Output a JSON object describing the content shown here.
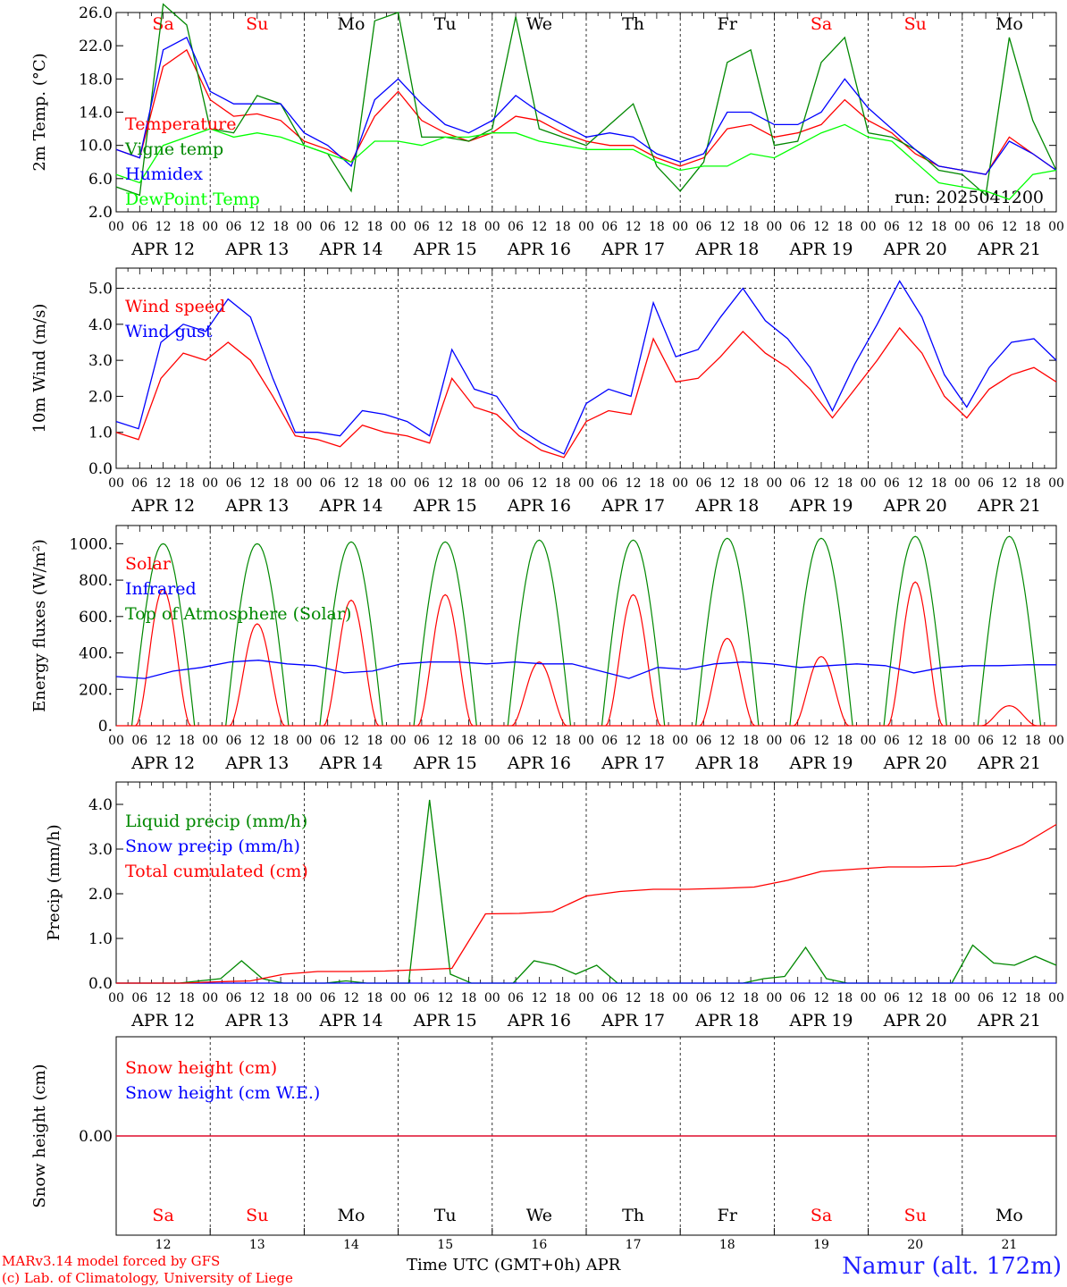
{
  "chart_data": [
    {
      "type": "line",
      "ylabel": "2m Temp. (°C)",
      "ylim": [
        2.0,
        26.0
      ],
      "yticks": [
        "26.0",
        "22.0",
        "18.0",
        "14.0",
        "10.0",
        "6.0",
        "2.0"
      ],
      "grid": "vertical dashed at day boundaries",
      "run_label": "run: 2025041200",
      "day_names": [
        "Sa",
        "Su",
        "Mo",
        "Tu",
        "We",
        "Th",
        "Fr",
        "Sa",
        "Su",
        "Mo"
      ],
      "day_colors": [
        "#ff0000",
        "#ff0000",
        "#000000",
        "#000000",
        "#000000",
        "#000000",
        "#000000",
        "#ff0000",
        "#ff0000",
        "#000000"
      ],
      "x_hours": [
        0,
        6,
        12,
        18,
        24,
        30,
        36,
        42,
        48,
        54,
        60,
        66,
        72,
        78,
        84,
        90,
        96,
        102,
        108,
        114,
        120,
        126,
        132,
        138,
        144,
        150,
        156,
        162,
        168,
        174,
        180,
        186,
        192,
        198,
        204,
        210,
        216,
        222,
        228,
        234,
        240
      ],
      "series": [
        {
          "name": "Temperature",
          "color": "#ff0000",
          "values": [
            9.5,
            8.5,
            19.5,
            21.5,
            15.5,
            13.5,
            13.8,
            13.0,
            10.5,
            9.5,
            8.0,
            13.5,
            16.5,
            13.0,
            11.5,
            10.5,
            11.5,
            13.5,
            13.0,
            11.5,
            10.5,
            10.0,
            10.0,
            8.5,
            7.5,
            8.5,
            12.0,
            12.5,
            11.0,
            11.5,
            12.5,
            15.5,
            13.0,
            11.5,
            9.0,
            7.5,
            7.0,
            6.5,
            11.0,
            9.0,
            7.0
          ]
        },
        {
          "name": "Vigne temp",
          "color": "#008800",
          "values": [
            5.0,
            4.0,
            27.0,
            24.5,
            12.0,
            11.5,
            16.0,
            15.0,
            10.0,
            9.0,
            4.5,
            25.0,
            26.0,
            11.0,
            11.0,
            10.5,
            12.0,
            25.5,
            12.0,
            11.0,
            10.0,
            12.5,
            15.0,
            7.5,
            4.5,
            8.0,
            20.0,
            21.5,
            10.0,
            10.5,
            20.0,
            23.0,
            11.5,
            11.0,
            9.5,
            7.0,
            6.5,
            4.0,
            23.0,
            13.0,
            7.0
          ]
        },
        {
          "name": "Humidex",
          "color": "#0000ff",
          "values": [
            9.5,
            8.5,
            21.5,
            23.0,
            16.5,
            15.0,
            15.0,
            15.0,
            11.5,
            10.0,
            7.5,
            15.5,
            18.0,
            15.0,
            12.5,
            11.5,
            13.0,
            16.0,
            14.0,
            12.5,
            11.0,
            11.5,
            11.0,
            9.0,
            8.0,
            9.0,
            14.0,
            14.0,
            12.5,
            12.5,
            14.0,
            18.0,
            14.5,
            12.0,
            9.5,
            7.5,
            7.0,
            6.5,
            10.5,
            9.0,
            7.0
          ]
        },
        {
          "name": "DewPoint Temp",
          "color": "#00ff00",
          "values": [
            6.5,
            5.5,
            10.0,
            11.0,
            12.0,
            11.0,
            11.5,
            11.0,
            10.0,
            9.0,
            8.0,
            10.5,
            10.5,
            10.0,
            11.0,
            11.0,
            11.5,
            11.5,
            10.5,
            10.0,
            9.5,
            9.5,
            9.5,
            8.0,
            7.0,
            7.5,
            7.5,
            9.0,
            8.5,
            10.0,
            11.5,
            12.5,
            11.0,
            10.5,
            8.0,
            5.5,
            5.0,
            4.5,
            3.5,
            6.5,
            7.0
          ]
        }
      ]
    },
    {
      "type": "line",
      "ylabel": "10m Wind (m/s)",
      "ylim": [
        0.0,
        5.0
      ],
      "yticks": [
        "5.0",
        "4.0",
        "3.0",
        "2.0",
        "1.0",
        "0.0"
      ],
      "series": [
        {
          "name": "Wind speed",
          "color": "#ff0000",
          "values": [
            1.0,
            0.8,
            2.5,
            3.2,
            3.0,
            3.5,
            3.0,
            2.0,
            0.9,
            0.8,
            0.6,
            1.2,
            1.0,
            0.9,
            0.7,
            2.5,
            1.7,
            1.5,
            0.9,
            0.5,
            0.3,
            1.3,
            1.6,
            1.5,
            3.6,
            2.4,
            2.5,
            3.1,
            3.8,
            3.2,
            2.8,
            2.2,
            1.4,
            2.2,
            3.0,
            3.9,
            3.2,
            2.0,
            1.4,
            2.2,
            2.6,
            2.8,
            2.4
          ]
        },
        {
          "name": "Wind gust",
          "color": "#0000ff",
          "values": [
            1.3,
            1.1,
            3.5,
            4.0,
            3.8,
            4.7,
            4.2,
            2.5,
            1.0,
            1.0,
            0.9,
            1.6,
            1.5,
            1.3,
            0.9,
            3.3,
            2.2,
            2.0,
            1.1,
            0.7,
            0.4,
            1.8,
            2.2,
            2.0,
            4.6,
            3.1,
            3.3,
            4.2,
            5.0,
            4.1,
            3.6,
            2.8,
            1.6,
            2.9,
            4.0,
            5.2,
            4.2,
            2.6,
            1.7,
            2.8,
            3.5,
            3.6,
            3.0
          ]
        }
      ]
    },
    {
      "type": "line",
      "ylabel": "Energy fluxes (W/m²)",
      "ylim": [
        0,
        1000
      ],
      "yticks": [
        "1000.",
        "800.",
        "600.",
        "400.",
        "200.",
        "0."
      ],
      "series": [
        {
          "name": "Solar",
          "color": "#ff0000",
          "peaks": [
            750,
            560,
            690,
            720,
            350,
            720,
            480,
            380,
            790,
            110
          ]
        },
        {
          "name": "Infrared",
          "color": "#0000ff",
          "values": [
            270,
            260,
            300,
            320,
            350,
            360,
            340,
            330,
            290,
            300,
            340,
            350,
            350,
            340,
            350,
            340,
            340,
            300,
            260,
            320,
            310,
            340,
            350,
            340,
            320,
            330,
            340,
            330,
            290,
            320,
            330,
            330,
            335,
            335
          ]
        },
        {
          "name": "Top of Atmosphere (Solar)",
          "color": "#008800",
          "peaks": [
            1000,
            1000,
            1010,
            1010,
            1020,
            1020,
            1030,
            1030,
            1040,
            1040
          ]
        }
      ]
    },
    {
      "type": "line",
      "ylabel": "Precip (mm/h)",
      "ylim": [
        0.0,
        4.5
      ],
      "yticks": [
        "4.0",
        "3.0",
        "2.0",
        "1.0",
        "0.0"
      ],
      "series": [
        {
          "name": "Liquid precip (mm/h)",
          "color": "#008800",
          "values": [
            0,
            0,
            0,
            0,
            0.05,
            0.1,
            0.5,
            0.1,
            0,
            0,
            0,
            0.05,
            0,
            0,
            0,
            4.1,
            0.2,
            0,
            0,
            0,
            0.5,
            0.4,
            0.2,
            0.4,
            0,
            0,
            0,
            0,
            0,
            0,
            0,
            0.1,
            0.15,
            0.8,
            0.1,
            0,
            0,
            0,
            0,
            0,
            0,
            0.85,
            0.45,
            0.4,
            0.6,
            0.4
          ]
        },
        {
          "name": "Snow precip (mm/h)",
          "color": "#0000ff",
          "values": [
            0,
            0
          ]
        },
        {
          "name": "Total cumulated (cm)",
          "color": "#ff0000",
          "values": [
            0,
            0,
            0,
            0.03,
            0.05,
            0.2,
            0.26,
            0.26,
            0.27,
            0.3,
            0.33,
            1.55,
            1.56,
            1.6,
            1.95,
            2.05,
            2.1,
            2.1,
            2.12,
            2.15,
            2.3,
            2.5,
            2.55,
            2.6,
            2.6,
            2.62,
            2.8,
            3.1,
            3.55
          ]
        }
      ]
    },
    {
      "type": "line",
      "ylabel": "Snow height (cm)",
      "yticks": [
        "0.00"
      ],
      "series": [
        {
          "name": "Snow height (cm)",
          "color": "#ff0000",
          "values": [
            0,
            0
          ]
        },
        {
          "name": "Snow height (cm W.E.)",
          "color": "#0000ff",
          "values": [
            0,
            0
          ]
        }
      ]
    }
  ],
  "x_axis": {
    "hour_ticks": [
      "00",
      "06",
      "12",
      "18"
    ],
    "end_tick": "00",
    "dates": [
      "APR 12",
      "APR 13",
      "APR 14",
      "APR 15",
      "APR 16",
      "APR 17",
      "APR 18",
      "APR 19",
      "APR 20",
      "APR 21"
    ],
    "day_numbers": [
      "12",
      "13",
      "14",
      "15",
      "16",
      "17",
      "18",
      "19",
      "20",
      "21"
    ],
    "month": "APR",
    "title": "Time UTC (GMT+0h)"
  },
  "footer": {
    "model": "MARv3.14 model forced by GFS",
    "credit": "(c) Lab. of Climatology, University of Liege",
    "station": "Namur (alt. 172m)"
  }
}
